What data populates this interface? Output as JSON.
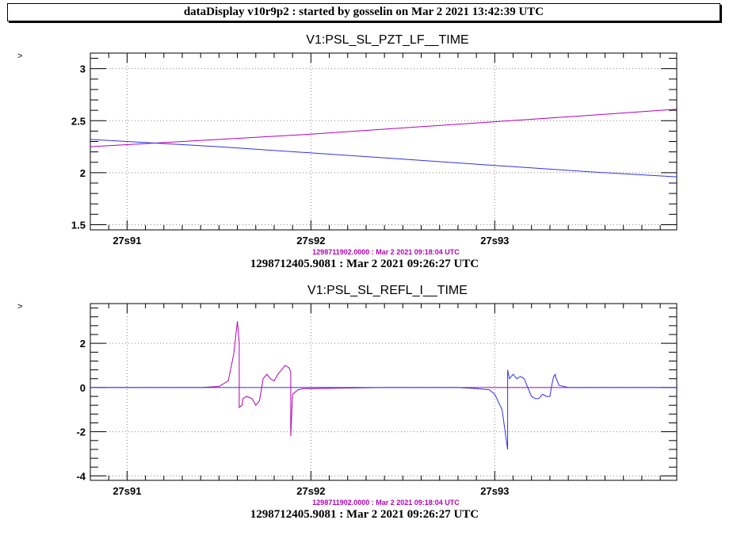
{
  "header": {
    "title": "dataDisplay v10r9p2 : started by gosselin on Mar  2 2021 13:42:39 UTC"
  },
  "chart_data": [
    {
      "type": "line",
      "title": "V1:PSL_SL_PZT_LF__TIME",
      "y_marker": ">",
      "xlim": [
        0.8,
        3.99
      ],
      "ylim": [
        1.45,
        3.15
      ],
      "x_ticks": [
        {
          "v": 1,
          "label": "27s91"
        },
        {
          "v": 2,
          "label": "27s92"
        },
        {
          "v": 3,
          "label": "27s93"
        }
      ],
      "y_ticks": [
        {
          "v": 1.5,
          "label": "1.5"
        },
        {
          "v": 2,
          "label": "2"
        },
        {
          "v": 2.5,
          "label": "2.5"
        },
        {
          "v": 3,
          "label": "3"
        }
      ],
      "grid": true,
      "offset_label": "1298711902.0000 : Mar  2 2021 09:18:04 UTC",
      "time_reference": "1298712405.9081 : Mar  2 2021 09:26:27 UTC",
      "series": [
        {
          "color": "#b400b4",
          "x": [
            0.8,
            1.5,
            2.0,
            2.5,
            3.0,
            3.5,
            3.99
          ],
          "y": [
            2.25,
            2.32,
            2.37,
            2.43,
            2.49,
            2.55,
            2.61
          ]
        },
        {
          "color": "#3232e6",
          "x": [
            0.8,
            1.5,
            2.0,
            2.5,
            3.0,
            3.5,
            3.99
          ],
          "y": [
            2.32,
            2.25,
            2.19,
            2.13,
            2.07,
            2.01,
            1.96
          ]
        }
      ]
    },
    {
      "type": "line",
      "title": "V1:PSL_SL_REFL_I__TIME",
      "y_marker": ">",
      "xlim": [
        0.8,
        3.99
      ],
      "ylim": [
        -4.2,
        3.8
      ],
      "x_ticks": [
        {
          "v": 1,
          "label": "27s91"
        },
        {
          "v": 2,
          "label": "27s92"
        },
        {
          "v": 3,
          "label": "27s93"
        }
      ],
      "y_ticks": [
        {
          "v": -4,
          "label": "-4"
        },
        {
          "v": -2,
          "label": "-2"
        },
        {
          "v": 0,
          "label": "0"
        },
        {
          "v": 2,
          "label": "2"
        }
      ],
      "grid": true,
      "offset_label": "1298711902.0000 : Mar  2 2021 09:18:04 UTC",
      "time_reference": "1298712405.9081 : Mar  2 2021 09:26:27 UTC",
      "series": [
        {
          "color": "#b400b4",
          "x": [
            0.8,
            1.4,
            1.5,
            1.55,
            1.58,
            1.6,
            1.61,
            1.61,
            1.625,
            1.63,
            1.65,
            1.68,
            1.7,
            1.72,
            1.74,
            1.76,
            1.78,
            1.8,
            1.82,
            1.84,
            1.86,
            1.88,
            1.89,
            1.89,
            1.9,
            1.93,
            1.96,
            2.0,
            2.4,
            3.99
          ],
          "y": [
            0.0,
            0.0,
            0.05,
            0.3,
            1.5,
            3.0,
            2.0,
            -0.9,
            -0.8,
            -0.5,
            -0.4,
            -0.5,
            -0.8,
            -0.6,
            0.4,
            0.6,
            0.4,
            0.3,
            0.6,
            0.8,
            1.0,
            0.9,
            0.7,
            -2.2,
            -0.3,
            -0.1,
            -0.05,
            -0.05,
            0.0,
            0.0
          ]
        },
        {
          "color": "#3232e6",
          "x": [
            0.8,
            2.8,
            2.9,
            2.97,
            3.0,
            3.04,
            3.07,
            3.07,
            3.08,
            3.1,
            3.12,
            3.14,
            3.16,
            3.18,
            3.2,
            3.22,
            3.24,
            3.26,
            3.28,
            3.3,
            3.31,
            3.32,
            3.33,
            3.33,
            3.35,
            3.4,
            3.99
          ],
          "y": [
            0.0,
            0.0,
            -0.05,
            -0.1,
            -0.3,
            -1.0,
            -2.8,
            0.8,
            0.4,
            0.6,
            0.4,
            0.5,
            0.4,
            0.0,
            -0.4,
            -0.5,
            -0.5,
            -0.3,
            -0.4,
            -0.4,
            0.1,
            0.5,
            0.6,
            0.5,
            0.1,
            0.0,
            0.0
          ]
        }
      ]
    }
  ]
}
